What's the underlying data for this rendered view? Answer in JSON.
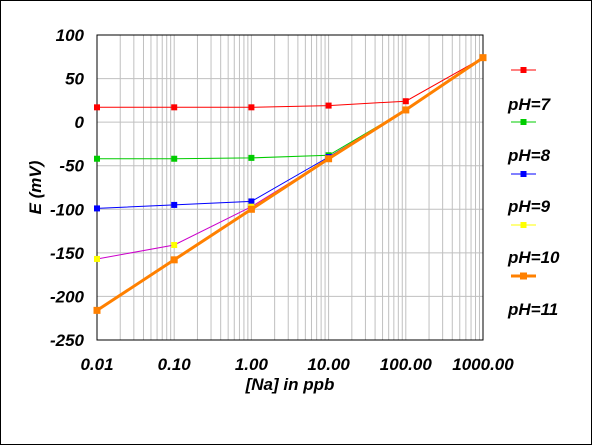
{
  "chart_data": {
    "type": "line",
    "xscale": "log",
    "xlabel": "[Na] in ppb",
    "ylabel": "E (mV)",
    "xlim": [
      0.01,
      1000
    ],
    "ylim": [
      -250,
      100
    ],
    "x_tick_labels": [
      "0.01",
      "0.10",
      "1.00",
      "10.00",
      "100.00",
      "1000.00"
    ],
    "y_tick_labels": [
      "100",
      "50",
      "0",
      "-50",
      "-100",
      "-150",
      "-200",
      "-250"
    ],
    "grid": true,
    "legend_position": "right",
    "x": [
      0.01,
      0.1,
      1,
      10,
      100,
      1000
    ],
    "series": [
      {
        "name": "pH=7",
        "color": "#ff0000",
        "marker": "square",
        "values": [
          17,
          17,
          17,
          19,
          24,
          74
        ]
      },
      {
        "name": "pH=8",
        "color": "#00cc00",
        "marker": "square",
        "values": [
          -42,
          -42,
          -41,
          -38,
          14,
          74
        ]
      },
      {
        "name": "pH=9",
        "color": "#0000ff",
        "marker": "square",
        "values": [
          -99,
          -95,
          -91,
          -40,
          14,
          74
        ]
      },
      {
        "name": "pH=10",
        "color": "#ffff00",
        "line_color": "#cc00cc",
        "marker": "square",
        "values": [
          -157,
          -141,
          -97,
          -42,
          14,
          74
        ]
      },
      {
        "name": "pH=11",
        "color": "#ff8000",
        "marker": "square",
        "thick": true,
        "values": [
          -216,
          -158,
          -100,
          -42,
          14,
          74
        ]
      }
    ]
  }
}
